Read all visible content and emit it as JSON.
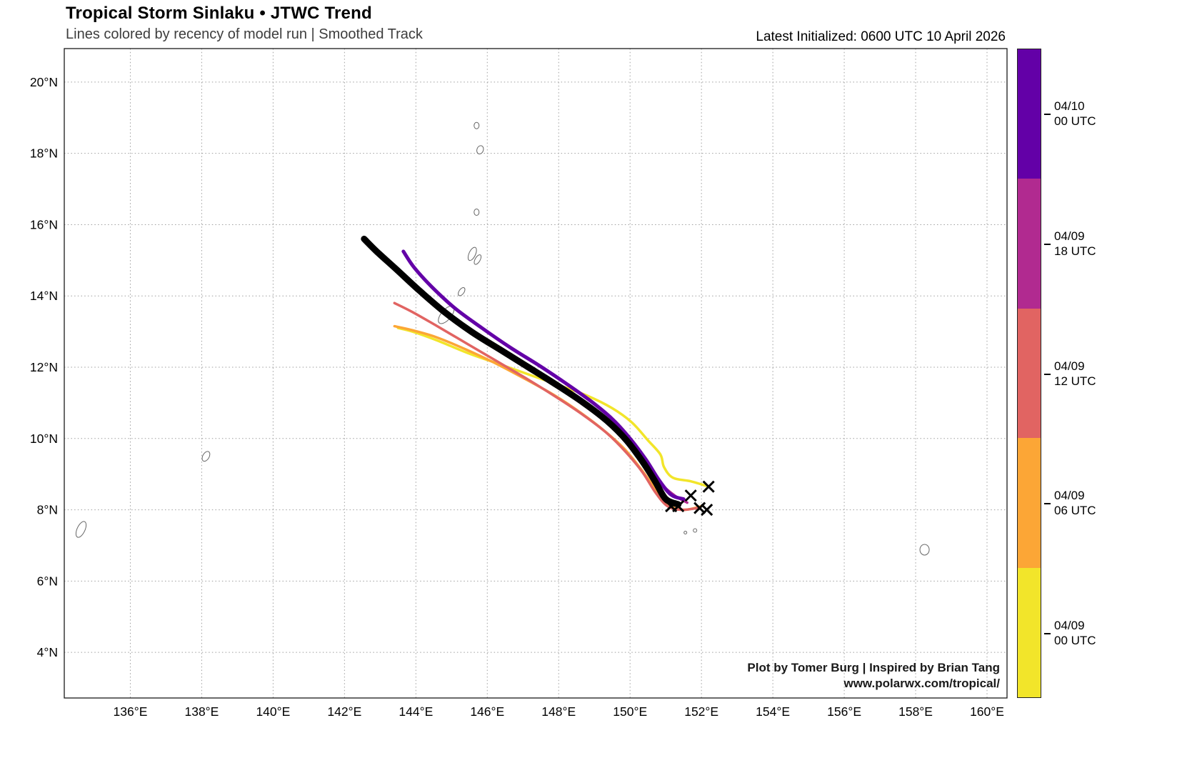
{
  "header": {
    "title": "Tropical Storm Sinlaku • JTWC Trend",
    "subtitle": "Lines colored by recency of model run | Smoothed Track",
    "initialized": "Latest Initialized: 0600 UTC 10 April 2026"
  },
  "credits": {
    "line1": "Plot by Tomer Burg | Inspired by Brian Tang",
    "line2": "www.polarwx.com/tropical/"
  },
  "colorbar": {
    "entries": [
      {
        "date": "04/10",
        "time": "00 UTC",
        "color": "#6300a7"
      },
      {
        "date": "04/09",
        "time": "18 UTC",
        "color": "#b12a90"
      },
      {
        "date": "04/09",
        "time": "12 UTC",
        "color": "#e16462"
      },
      {
        "date": "04/09",
        "time": "06 UTC",
        "color": "#fca636"
      },
      {
        "date": "04/09",
        "time": "00 UTC",
        "color": "#f2e52a"
      }
    ]
  },
  "chart_data": {
    "type": "line",
    "title": "Tropical Storm Sinlaku • JTWC Trend",
    "subtitle": "Lines colored by recency of model run | Smoothed Track",
    "xlabel": "",
    "ylabel": "",
    "xlim": [
      134.15,
      160.56
    ],
    "ylim": [
      2.72,
      20.94
    ],
    "grid": true,
    "legend_position": "right-colorbar",
    "x_ticks": [
      136,
      138,
      140,
      142,
      144,
      146,
      148,
      150,
      152,
      154,
      156,
      158,
      160
    ],
    "x_tick_labels": [
      "136°E",
      "138°E",
      "140°E",
      "142°E",
      "144°E",
      "146°E",
      "148°E",
      "150°E",
      "152°E",
      "154°E",
      "156°E",
      "158°E",
      "160°E"
    ],
    "y_ticks": [
      4,
      6,
      8,
      10,
      12,
      14,
      16,
      18,
      20
    ],
    "y_tick_labels": [
      "4°N",
      "6°N",
      "8°N",
      "10°N",
      "12°N",
      "14°N",
      "16°N",
      "18°N",
      "20°N"
    ],
    "series": [
      {
        "name": "04/09 00 UTC",
        "color": "#f2e52a",
        "width": 3.5,
        "points": [
          [
            152.2,
            8.65
          ],
          [
            151.7,
            8.8
          ],
          [
            151.2,
            8.9
          ],
          [
            150.95,
            9.2
          ],
          [
            150.85,
            9.55
          ],
          [
            150.5,
            9.95
          ],
          [
            150.05,
            10.45
          ],
          [
            149.5,
            10.85
          ],
          [
            148.8,
            11.2
          ],
          [
            148.0,
            11.5
          ],
          [
            147.15,
            11.8
          ],
          [
            146.3,
            12.1
          ],
          [
            145.45,
            12.4
          ],
          [
            144.6,
            12.75
          ],
          [
            143.9,
            13.0
          ],
          [
            143.5,
            13.1
          ]
        ]
      },
      {
        "name": "04/09 06 UTC",
        "color": "#fca636",
        "width": 3.5,
        "points": [
          [
            152.0,
            8.1
          ],
          [
            151.5,
            8.0
          ],
          [
            151.05,
            8.15
          ],
          [
            150.7,
            8.6
          ],
          [
            150.3,
            9.15
          ],
          [
            149.85,
            9.7
          ],
          [
            149.3,
            10.2
          ],
          [
            148.65,
            10.7
          ],
          [
            147.9,
            11.2
          ],
          [
            147.1,
            11.65
          ],
          [
            146.25,
            12.1
          ],
          [
            145.4,
            12.5
          ],
          [
            144.55,
            12.85
          ],
          [
            143.85,
            13.05
          ],
          [
            143.4,
            13.15
          ]
        ]
      },
      {
        "name": "04/09 12 UTC",
        "color": "#e16462",
        "width": 3.5,
        "points": [
          [
            151.9,
            8.05
          ],
          [
            151.45,
            8.0
          ],
          [
            151.05,
            8.1
          ],
          [
            150.7,
            8.5
          ],
          [
            150.35,
            9.05
          ],
          [
            149.9,
            9.6
          ],
          [
            149.35,
            10.15
          ],
          [
            148.7,
            10.65
          ],
          [
            147.95,
            11.15
          ],
          [
            147.15,
            11.65
          ],
          [
            146.3,
            12.15
          ],
          [
            145.45,
            12.65
          ],
          [
            144.6,
            13.15
          ],
          [
            143.9,
            13.55
          ],
          [
            143.4,
            13.8
          ]
        ]
      },
      {
        "name": "04/09 18 UTC",
        "color": "#b12a90",
        "width": 3.5,
        "points": [
          [
            151.6,
            8.2
          ],
          [
            151.25,
            8.4
          ],
          [
            150.85,
            8.75
          ],
          [
            150.45,
            9.3
          ],
          [
            149.95,
            9.9
          ],
          [
            149.4,
            10.45
          ],
          [
            148.75,
            10.95
          ],
          [
            148.0,
            11.45
          ],
          [
            147.2,
            11.95
          ],
          [
            146.4,
            12.45
          ],
          [
            145.6,
            12.95
          ],
          [
            144.85,
            13.5
          ],
          [
            144.2,
            14.05
          ],
          [
            143.8,
            14.5
          ]
        ]
      },
      {
        "name": "04/10 00 UTC",
        "color": "#6300a7",
        "width": 5,
        "points": [
          [
            151.5,
            8.3
          ],
          [
            151.15,
            8.42
          ],
          [
            150.8,
            8.85
          ],
          [
            150.45,
            9.4
          ],
          [
            150.0,
            10.0
          ],
          [
            149.5,
            10.55
          ],
          [
            148.9,
            11.05
          ],
          [
            148.2,
            11.55
          ],
          [
            147.45,
            12.05
          ],
          [
            146.65,
            12.55
          ],
          [
            145.85,
            13.1
          ],
          [
            145.1,
            13.65
          ],
          [
            144.45,
            14.25
          ],
          [
            143.95,
            14.8
          ],
          [
            143.65,
            15.25
          ]
        ]
      },
      {
        "name": "Latest JTWC smoothed track",
        "color": "#000000",
        "width": 9,
        "points": [
          [
            151.35,
            8.15
          ],
          [
            151.0,
            8.3
          ],
          [
            150.7,
            8.8
          ],
          [
            150.35,
            9.35
          ],
          [
            149.9,
            9.95
          ],
          [
            149.35,
            10.5
          ],
          [
            148.7,
            11.0
          ],
          [
            147.95,
            11.5
          ],
          [
            147.15,
            12.0
          ],
          [
            146.35,
            12.5
          ],
          [
            145.55,
            13.0
          ],
          [
            144.8,
            13.55
          ],
          [
            144.1,
            14.15
          ],
          [
            143.45,
            14.75
          ],
          [
            142.9,
            15.25
          ],
          [
            142.55,
            15.6
          ]
        ]
      }
    ],
    "markers": {
      "symbol": "x",
      "color": "#000000",
      "size": 15,
      "points": [
        [
          152.2,
          8.65
        ],
        [
          151.7,
          8.4
        ],
        [
          151.15,
          8.1
        ],
        [
          151.35,
          8.1
        ],
        [
          151.95,
          8.05
        ],
        [
          152.15,
          8.0
        ]
      ]
    },
    "islands": [
      [
        145.7,
        18.78,
        0.07,
        0.09,
        0
      ],
      [
        145.8,
        18.1,
        0.09,
        0.12,
        20
      ],
      [
        145.7,
        16.35,
        0.07,
        0.09,
        0
      ],
      [
        145.58,
        15.18,
        0.09,
        0.2,
        25
      ],
      [
        145.73,
        15.02,
        0.07,
        0.15,
        30
      ],
      [
        145.28,
        14.12,
        0.07,
        0.13,
        35
      ],
      [
        144.85,
        13.47,
        0.14,
        0.3,
        40
      ],
      [
        138.12,
        9.5,
        0.09,
        0.15,
        30
      ],
      [
        134.62,
        7.45,
        0.11,
        0.24,
        25
      ],
      [
        158.25,
        6.88,
        0.13,
        0.15,
        0
      ],
      [
        151.82,
        7.42,
        0.05,
        0.05,
        0
      ],
      [
        151.55,
        7.36,
        0.04,
        0.04,
        0
      ]
    ]
  }
}
